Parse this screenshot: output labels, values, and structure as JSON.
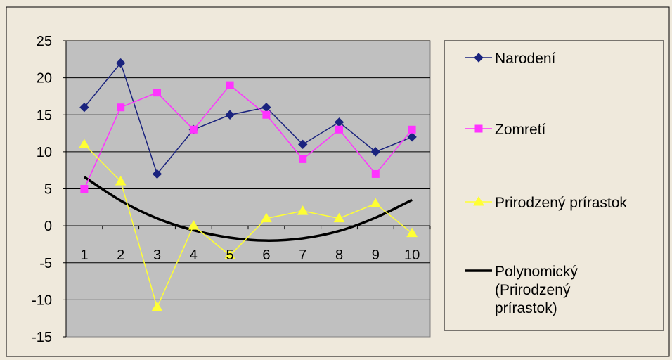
{
  "chart_data": {
    "type": "line",
    "categories": [
      "1",
      "2",
      "3",
      "4",
      "5",
      "6",
      "7",
      "8",
      "9",
      "10"
    ],
    "ylim": [
      -15,
      25
    ],
    "yticks": [
      -15,
      -10,
      -5,
      0,
      5,
      10,
      15,
      20,
      25
    ],
    "grid": "horizontal",
    "legend_position": "right",
    "series": [
      {
        "name": "Narodení",
        "color": "#1a237e",
        "marker": "diamond",
        "values": [
          16,
          22,
          7,
          13,
          15,
          16,
          11,
          14,
          10,
          12
        ]
      },
      {
        "name": "Zomretí",
        "color": "#ff33ff",
        "marker": "square",
        "values": [
          5,
          16,
          18,
          13,
          19,
          15,
          9,
          13,
          7,
          13
        ]
      },
      {
        "name": "Prirodzený prírastok",
        "color": "#ffff33",
        "marker": "triangle",
        "values": [
          11,
          6,
          -11,
          0,
          -4,
          1,
          2,
          1,
          3,
          -1
        ]
      }
    ],
    "trendline": {
      "name_lines": [
        "Polynomický",
        "(Prirodzený",
        "prírastok)"
      ],
      "color": "#000000",
      "type": "polynomial",
      "values": [
        6.6,
        3.4,
        1.0,
        -0.6,
        -1.6,
        -2.0,
        -1.7,
        -0.7,
        1.1,
        3.5
      ]
    }
  }
}
